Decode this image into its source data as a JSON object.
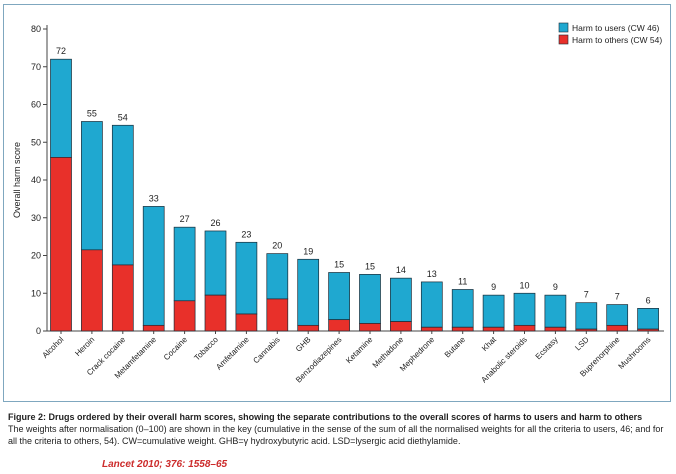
{
  "colors": {
    "users": "#1fa8d0",
    "others": "#e8302a",
    "citation": "#cc2b2b"
  },
  "chart_data": {
    "type": "bar",
    "stacked": true,
    "title": "",
    "xlabel": "",
    "ylabel": "Overall harm score",
    "ylim": [
      0,
      80
    ],
    "yticks": [
      0,
      10,
      20,
      30,
      40,
      50,
      60,
      70,
      80
    ],
    "grid": false,
    "legend_position": "top-right",
    "categories": [
      "Alcohol",
      "Heroin",
      "Crack cocaine",
      "Metamfetamine",
      "Cocaine",
      "Tobacco",
      "Amfetamine",
      "Cannabis",
      "GHB",
      "Benzodiazepines",
      "Ketamine",
      "Methadone",
      "Mephedrone",
      "Butane",
      "Khat",
      "Anabolic steroids",
      "Ecstasy",
      "LSD",
      "Buprenorphine",
      "Mushrooms"
    ],
    "totals": [
      72,
      55,
      54,
      33,
      27,
      26,
      23,
      20,
      19,
      15,
      15,
      14,
      13,
      11,
      9,
      10,
      9,
      7,
      7,
      6
    ],
    "series": [
      {
        "name": "Harm to others (CW 54)",
        "key": "others",
        "values": [
          46,
          21.5,
          17.5,
          1.5,
          8,
          9.5,
          4.5,
          8.5,
          1.5,
          3,
          2,
          2.5,
          1,
          1,
          1,
          1.5,
          1,
          0.5,
          1.5,
          0.5
        ]
      },
      {
        "name": "Harm to users (CW 46)",
        "key": "users",
        "values": [
          26,
          34,
          37,
          31.5,
          19.5,
          17,
          19,
          12,
          17.5,
          12.5,
          13,
          11.5,
          12,
          10,
          8.5,
          8.5,
          8.5,
          7,
          5.5,
          5.5
        ]
      }
    ],
    "legend": [
      {
        "label": "Harm to users (CW 46)",
        "key": "users"
      },
      {
        "label": "Harm to others (CW 54)",
        "key": "others"
      }
    ]
  },
  "caption": {
    "figure_title": "Figure 2: Drugs ordered by their overall harm scores, showing the separate contributions to the overall scores of harms to users and harm to others",
    "body": "The weights after normalisation (0–100) are shown in the key (cumulative in the sense of the sum of all the normalised weights for all the criteria to users, 46; and for all the criteria to others, 54). CW=cumulative weight. GHB=γ hydroxybutyric acid. LSD=lysergic acid diethylamide."
  },
  "citation": "Lancet 2010; 376: 1558–65"
}
